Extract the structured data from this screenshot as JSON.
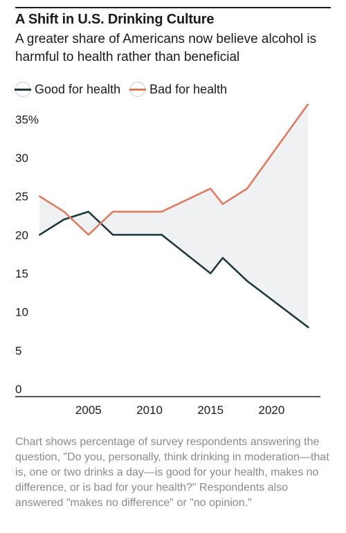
{
  "header": {
    "title": "A Shift in U.S. Drinking Culture",
    "subtitle": "A greater share of Americans now believe alcohol is harmful to health rather than beneficial"
  },
  "colors": {
    "good": "#1c3a3a",
    "bad": "#e07a5f",
    "fill": "#f0f1f3",
    "axis": "#1a1a1a",
    "text": "#1a1a1a"
  },
  "chart_data": {
    "type": "line",
    "title": "A Shift in U.S. Drinking Culture",
    "xlabel": "",
    "ylabel": "",
    "xlim": [
      1999,
      2024
    ],
    "ylim": [
      0,
      38
    ],
    "grid": false,
    "legend_position": "top-left",
    "x_ticks": [
      2005,
      2010,
      2015,
      2020
    ],
    "x_tick_labels": [
      "2005",
      "2010",
      "2015",
      "2020"
    ],
    "y_ticks": [
      0,
      5,
      10,
      15,
      20,
      25,
      30,
      35
    ],
    "y_tick_labels": [
      "0",
      "5",
      "10",
      "15",
      "20",
      "25",
      "30",
      "35%"
    ],
    "shaded_between_series": true,
    "series": [
      {
        "name": "Good for health",
        "color": "#1c3a3a",
        "x": [
          2001,
          2003,
          2005,
          2007,
          2011,
          2015,
          2016,
          2018,
          2023
        ],
        "values": [
          21,
          23,
          24,
          21,
          21,
          16,
          18,
          15,
          9
        ]
      },
      {
        "name": "Bad for health",
        "color": "#e07a5f",
        "x": [
          2001,
          2003,
          2005,
          2007,
          2011,
          2015,
          2016,
          2018,
          2023
        ],
        "values": [
          26,
          24,
          21,
          24,
          24,
          27,
          25,
          27,
          38
        ]
      }
    ]
  },
  "footer": {
    "note": "Chart shows percentage of survey respondents answering the question, \"Do you, personally, think drinking in moderation—that is, one or two drinks a day—is good for your health, makes no difference, or is bad for your health?\" Respondents also answered \"makes no difference\" or \"no opinion.\""
  }
}
